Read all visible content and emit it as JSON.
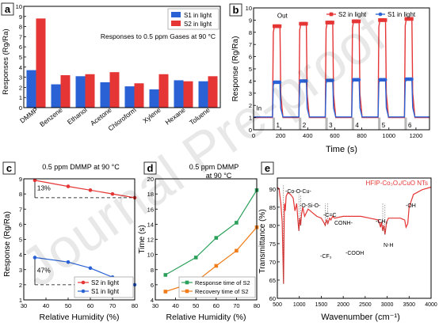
{
  "figure": {
    "watermark": "Journal Pre-proof"
  },
  "chart_data": [
    {
      "id": "a",
      "panel_label": "a",
      "type": "bar",
      "annotation": "Responses to 0.5 ppm Gases at 90 °C",
      "xlabel": "",
      "ylabel": "Responses (Rg/Ra)",
      "ylim": [
        0,
        10
      ],
      "yticks": [
        0,
        1,
        2,
        3,
        4,
        5,
        6,
        7,
        8,
        9,
        10
      ],
      "categories": [
        "DMMP",
        "Benzene",
        "Ethanol",
        "Acetone",
        "Chloroform",
        "Xylene",
        "Hexane",
        "Toluene"
      ],
      "series": [
        {
          "name": "S1 in light",
          "color": "#2a62d6",
          "values": [
            3.7,
            2.3,
            3.1,
            2.5,
            2.1,
            1.8,
            2.7,
            2.6
          ]
        },
        {
          "name": "S2 in light",
          "color": "#e53535",
          "values": [
            8.8,
            3.2,
            3.3,
            3.5,
            2.4,
            3.3,
            2.6,
            3.1
          ]
        }
      ],
      "legend": "top-right"
    },
    {
      "id": "b",
      "panel_label": "b",
      "type": "line",
      "xlabel": "Time (s)",
      "ylabel": "Response (Rg/Ra)",
      "xlim": [
        0,
        1300
      ],
      "ylim": [
        0,
        10
      ],
      "xticks": [
        0,
        200,
        400,
        600,
        800,
        1000,
        1200
      ],
      "yticks": [
        0,
        1,
        2,
        3,
        4,
        5,
        6,
        7,
        8,
        9,
        10
      ],
      "annotations": [
        "In",
        "Out"
      ],
      "cycle_labels": [
        "1",
        "2",
        "3",
        "4",
        "5",
        "6"
      ],
      "cycles": [
        {
          "on": 140,
          "off": 195
        },
        {
          "on": 335,
          "off": 390
        },
        {
          "on": 530,
          "off": 585
        },
        {
          "on": 725,
          "off": 780
        },
        {
          "on": 920,
          "off": 975
        },
        {
          "on": 1115,
          "off": 1170
        }
      ],
      "series": [
        {
          "name": "S2 in light",
          "color": "#e53535",
          "baseline": 1.0,
          "plateaus": [
            8.5,
            8.7,
            8.8,
            8.9,
            9.0,
            9.1
          ]
        },
        {
          "name": "S1 in light",
          "color": "#2a62d6",
          "baseline": 1.05,
          "plateaus": [
            3.9,
            4.0,
            4.05,
            4.1,
            4.1,
            4.15
          ]
        }
      ],
      "legend": "top-right"
    },
    {
      "id": "c",
      "panel_label": "c",
      "type": "line",
      "annotation": "0.5 ppm DMMP at 90 °C",
      "xlabel": "Relative Humidity (%)",
      "ylabel": "Response (Rg/Ra)",
      "xlim": [
        30,
        80
      ],
      "ylim": [
        1,
        9
      ],
      "xticks": [
        30,
        40,
        50,
        60,
        70,
        80
      ],
      "yticks": [
        1,
        2,
        3,
        4,
        5,
        6,
        7,
        8,
        9
      ],
      "x": [
        35,
        50,
        60,
        70,
        80
      ],
      "series": [
        {
          "name": "S2 in light",
          "color": "#e53535",
          "values": [
            8.9,
            8.5,
            8.25,
            8.0,
            7.75
          ]
        },
        {
          "name": "S1 in light",
          "color": "#2a62d6",
          "values": [
            3.8,
            3.5,
            3.1,
            2.5,
            2.0
          ]
        }
      ],
      "percent_labels": [
        "13%",
        "47%"
      ],
      "legend": "bottom-right"
    },
    {
      "id": "d",
      "panel_label": "d",
      "type": "line",
      "annotation": [
        "0.5 ppm DMMP",
        "at 90 °C"
      ],
      "xlabel": "Relative Humidity (%)",
      "ylabel": "Time (s)",
      "xlim": [
        30,
        80
      ],
      "ylim": [
        4,
        20
      ],
      "xticks": [
        30,
        40,
        50,
        60,
        70,
        80
      ],
      "yticks": [
        4,
        6,
        8,
        10,
        12,
        14,
        16,
        18,
        20
      ],
      "x": [
        35,
        50,
        60,
        70,
        80
      ],
      "series": [
        {
          "name": "Response time of S2",
          "color": "#2aa05a",
          "values": [
            7.3,
            9.6,
            12.2,
            14.2,
            18.5
          ]
        },
        {
          "name": "Recovery time of S2",
          "color": "#f07d1a",
          "values": [
            5.1,
            6.4,
            8.5,
            10.5,
            13.6
          ]
        }
      ],
      "legend": "bottom-right"
    },
    {
      "id": "e",
      "panel_label": "e",
      "type": "line",
      "title": "HFIP-Co₃O₄/CuO NTs",
      "xlabel": "Wavenumber (cm⁻¹)",
      "ylabel": "Transmittance (%)",
      "xlim": [
        500,
        4000
      ],
      "ylim": [
        60,
        93
      ],
      "xticks": [
        500,
        1000,
        1500,
        2000,
        2500,
        3000,
        3500,
        4000
      ],
      "yticks": [
        60,
        65,
        70,
        75,
        80,
        85,
        90
      ],
      "color": "#e53535",
      "x": [
        500,
        540,
        580,
        610,
        640,
        660,
        680,
        700,
        740,
        800,
        860,
        900,
        940,
        970,
        990,
        1010,
        1030,
        1050,
        1080,
        1120,
        1200,
        1300,
        1400,
        1500,
        1550,
        1590,
        1620,
        1650,
        1690,
        1720,
        1760,
        1800,
        2000,
        2200,
        2400,
        2600,
        2800,
        2850,
        2870,
        2900,
        2925,
        2950,
        2990,
        3030,
        3100,
        3200,
        3300,
        3400,
        3430,
        3470,
        3500,
        3600,
        3800,
        4000
      ],
      "values": [
        90.5,
        90.0,
        86.0,
        81.0,
        64.0,
        86.0,
        84.0,
        88.0,
        89.0,
        88.5,
        87.5,
        84.0,
        86.0,
        81.0,
        78.5,
        82.0,
        80.0,
        83.0,
        85.0,
        82.5,
        84.5,
        83.5,
        82.5,
        82.0,
        81.0,
        80.0,
        81.5,
        80.5,
        82.0,
        81.5,
        82.5,
        82.0,
        82.5,
        82.5,
        82.5,
        82.0,
        81.5,
        79.5,
        81.0,
        78.5,
        80.0,
        77.5,
        81.0,
        82.0,
        82.0,
        82.0,
        82.0,
        81.5,
        79.5,
        80.5,
        85.0,
        88.5,
        89.8,
        90.5
      ],
      "peak_labels": [
        "-Co-O-Cu-",
        "-O-Si-O-",
        "-C=C",
        "CONH-",
        "-CF₃",
        "-COOH",
        "-CH₂",
        "N-H",
        "-OH"
      ]
    }
  ]
}
